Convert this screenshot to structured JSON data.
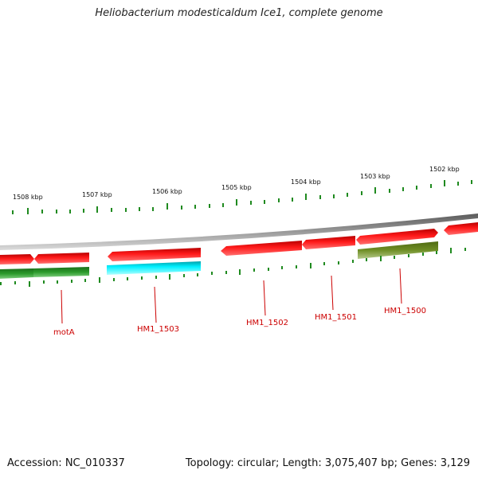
{
  "title": "Heliobacterium modesticaldum Ice1, complete genome",
  "footer": {
    "accession": "Accession: NC_010337",
    "topology": "Topology: circular; Length: 3,075,407 bp; Genes: 3,129"
  },
  "scale_labels": [
    "1508 kbp",
    "1507 kbp",
    "1506 kbp",
    "1505 kbp",
    "1504 kbp",
    "1503 kbp",
    "1502 kbp"
  ],
  "gene_labels": [
    "motA",
    "HM1_1503",
    "HM1_1502",
    "HM1_1501",
    "HM1_1500"
  ],
  "colors": {
    "forward_gene": "#ee1111",
    "reverse_gene": "#1f8a1f",
    "highlight_gene": "#00e5ee",
    "olive_gene": "#6b8e23",
    "backbone": "#888888",
    "ticks": "#1f8a1f",
    "labels": "#cc0000"
  }
}
